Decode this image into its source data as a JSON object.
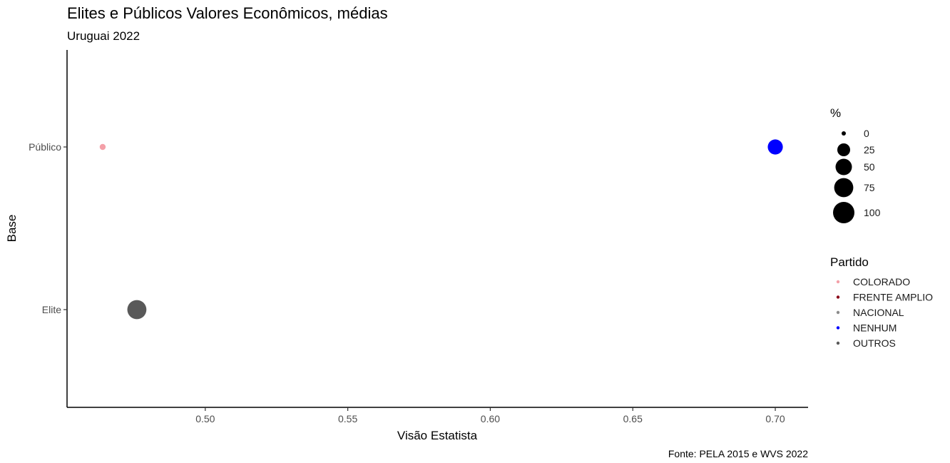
{
  "chart_data": {
    "type": "scatter",
    "title": "Elites e Públicos Valores Econômicos, médias",
    "subtitle": "Uruguai 2022",
    "xlabel": "Visão Estatista",
    "ylabel": "Base",
    "caption": "Fonte: PELA 2015 e WVS 2022",
    "xlim": [
      0.4515,
      0.7115
    ],
    "x_ticks": [
      "0.50",
      "0.55",
      "0.60",
      "0.65",
      "0.70"
    ],
    "x_tick_values": [
      0.5,
      0.55,
      0.6,
      0.65,
      0.7
    ],
    "categories": [
      "Elite",
      "Público"
    ],
    "grid": false,
    "size_legend": {
      "title": "%",
      "breaks": [
        0,
        25,
        50,
        75,
        100
      ],
      "labels": [
        "0",
        "25",
        "50",
        "75",
        "100"
      ]
    },
    "color_legend": {
      "title": "Partido",
      "entries": [
        {
          "name": "COLORADO",
          "color": "#f4a0a8"
        },
        {
          "name": "FRENTE AMPLIO",
          "color": "#8b0a1a"
        },
        {
          "name": "NACIONAL",
          "color": "#8c8c8c"
        },
        {
          "name": "NENHUM",
          "color": "#0000ff"
        },
        {
          "name": "OUTROS",
          "color": "#595959"
        }
      ]
    },
    "legend_position": "right",
    "points": [
      {
        "x": 0.464,
        "y": "Público",
        "partido": "COLORADO",
        "percent": 1
      },
      {
        "x": 0.7,
        "y": "Público",
        "partido": "NENHUM",
        "percent": 40
      },
      {
        "x": 0.476,
        "y": "Elite",
        "partido": "OUTROS",
        "percent": 75
      }
    ]
  }
}
